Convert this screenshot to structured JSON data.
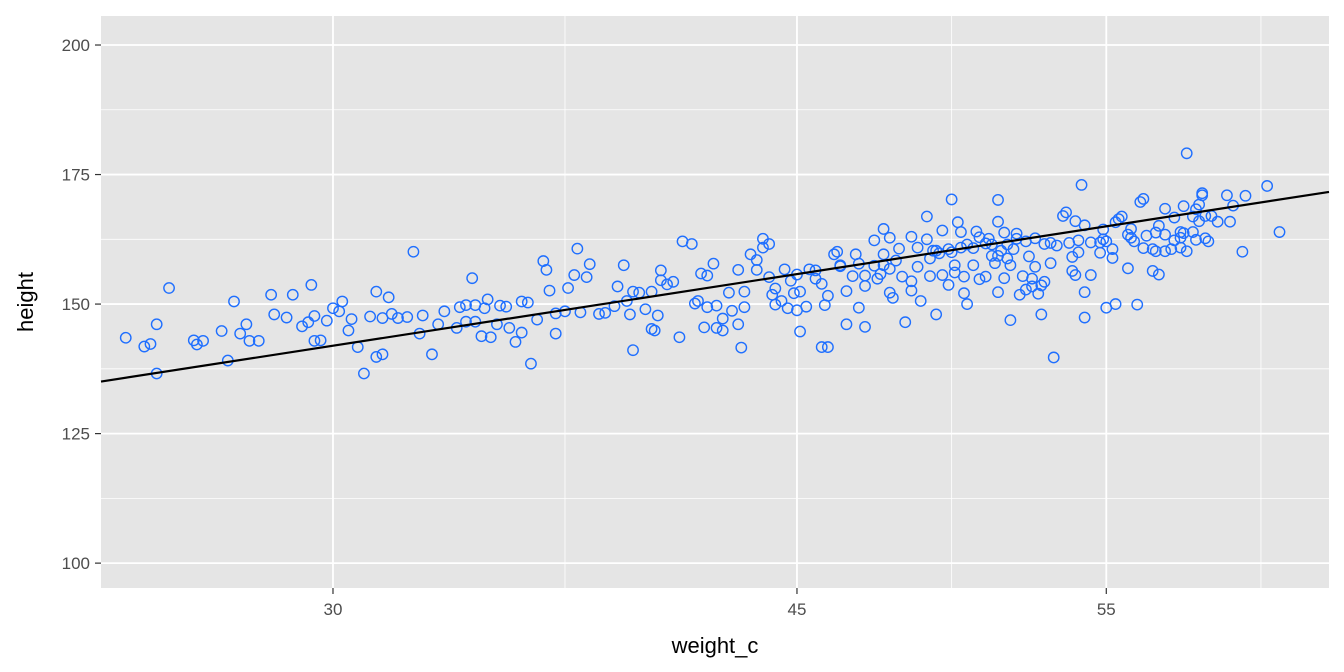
{
  "chart_data": {
    "type": "scatter",
    "title": "",
    "xlabel": "weight_c",
    "ylabel": "height",
    "x_ticks": [
      {
        "value": 30,
        "label": "30"
      },
      {
        "value": 45,
        "label": "45"
      },
      {
        "value": 55,
        "label": "55"
      }
    ],
    "y_ticks": [
      {
        "value": 100,
        "label": "100"
      },
      {
        "value": 125,
        "label": "125"
      },
      {
        "value": 150,
        "label": "150"
      },
      {
        "value": 175,
        "label": "175"
      },
      {
        "value": 200,
        "label": "200"
      }
    ],
    "xlim": [
      22.5,
      62.2
    ],
    "ylim": [
      95.2,
      205.6
    ],
    "grid": true,
    "colors": {
      "panel": "#e5e5e5",
      "grid": "#ffffff",
      "points": "#1f6fff",
      "line": "#000000"
    },
    "fit_line": {
      "intercept": 114.3,
      "slope": 0.922
    },
    "points": [
      [
        23.3,
        143.5
      ],
      [
        23.9,
        141.8
      ],
      [
        24.1,
        142.3
      ],
      [
        24.3,
        136.6
      ],
      [
        24.3,
        146.1
      ],
      [
        24.7,
        153.1
      ],
      [
        25.5,
        143.0
      ],
      [
        25.6,
        142.2
      ],
      [
        25.8,
        142.9
      ],
      [
        26.4,
        144.8
      ],
      [
        26.6,
        139.1
      ],
      [
        26.8,
        150.5
      ],
      [
        27.0,
        144.3
      ],
      [
        27.2,
        146.1
      ],
      [
        27.3,
        142.9
      ],
      [
        27.6,
        142.9
      ],
      [
        28.0,
        151.8
      ],
      [
        28.1,
        148.0
      ],
      [
        28.5,
        147.4
      ],
      [
        28.7,
        151.8
      ],
      [
        29.0,
        145.7
      ],
      [
        29.2,
        146.5
      ],
      [
        29.4,
        147.7
      ],
      [
        29.3,
        153.7
      ],
      [
        29.6,
        143.0
      ],
      [
        29.4,
        142.9
      ],
      [
        29.8,
        146.8
      ],
      [
        30.0,
        149.2
      ],
      [
        30.2,
        148.6
      ],
      [
        30.3,
        150.5
      ],
      [
        30.6,
        147.1
      ],
      [
        30.5,
        144.9
      ],
      [
        30.8,
        141.7
      ],
      [
        31.0,
        136.6
      ],
      [
        31.2,
        147.6
      ],
      [
        31.4,
        152.4
      ],
      [
        31.6,
        147.3
      ],
      [
        31.6,
        140.3
      ],
      [
        31.4,
        139.8
      ],
      [
        31.8,
        151.3
      ],
      [
        31.9,
        148.1
      ],
      [
        32.1,
        147.3
      ],
      [
        32.4,
        147.5
      ],
      [
        32.6,
        160.1
      ],
      [
        32.8,
        144.3
      ],
      [
        32.9,
        147.8
      ],
      [
        33.2,
        140.3
      ],
      [
        33.4,
        146.1
      ],
      [
        33.6,
        148.6
      ],
      [
        34.0,
        145.4
      ],
      [
        34.1,
        149.4
      ],
      [
        34.3,
        149.8
      ],
      [
        34.3,
        146.6
      ],
      [
        34.5,
        155.0
      ],
      [
        34.6,
        149.8
      ],
      [
        34.6,
        146.6
      ],
      [
        34.8,
        143.8
      ],
      [
        34.9,
        149.2
      ],
      [
        35.1,
        143.6
      ],
      [
        35.0,
        150.9
      ],
      [
        35.4,
        149.7
      ],
      [
        35.3,
        146.1
      ],
      [
        35.6,
        149.5
      ],
      [
        35.7,
        145.4
      ],
      [
        35.9,
        142.7
      ],
      [
        36.1,
        144.5
      ],
      [
        36.1,
        150.5
      ],
      [
        36.3,
        150.3
      ],
      [
        36.4,
        138.5
      ],
      [
        36.6,
        147.0
      ],
      [
        36.8,
        158.3
      ],
      [
        36.9,
        156.6
      ],
      [
        37.0,
        152.6
      ],
      [
        37.2,
        144.3
      ],
      [
        37.2,
        148.2
      ],
      [
        37.5,
        148.6
      ],
      [
        37.6,
        153.1
      ],
      [
        37.8,
        155.6
      ],
      [
        37.9,
        160.7
      ],
      [
        38.0,
        148.4
      ],
      [
        38.2,
        155.2
      ],
      [
        38.3,
        157.7
      ],
      [
        38.6,
        148.1
      ],
      [
        38.8,
        148.3
      ],
      [
        39.1,
        149.6
      ],
      [
        39.2,
        153.4
      ],
      [
        39.4,
        157.5
      ],
      [
        39.5,
        150.6
      ],
      [
        39.6,
        148.0
      ],
      [
        39.7,
        152.4
      ],
      [
        39.9,
        152.2
      ],
      [
        39.7,
        141.1
      ],
      [
        40.1,
        149.0
      ],
      [
        40.3,
        152.4
      ],
      [
        40.3,
        145.2
      ],
      [
        40.4,
        144.9
      ],
      [
        40.5,
        147.8
      ],
      [
        40.6,
        154.6
      ],
      [
        40.6,
        156.5
      ],
      [
        40.8,
        153.8
      ],
      [
        41.0,
        154.3
      ],
      [
        41.2,
        143.6
      ],
      [
        41.3,
        162.1
      ],
      [
        41.6,
        161.6
      ],
      [
        41.7,
        150.1
      ],
      [
        41.8,
        150.6
      ],
      [
        41.9,
        155.9
      ],
      [
        42.0,
        145.5
      ],
      [
        42.1,
        149.4
      ],
      [
        42.1,
        155.5
      ],
      [
        42.3,
        157.8
      ],
      [
        42.4,
        149.7
      ],
      [
        42.4,
        145.4
      ],
      [
        42.6,
        147.2
      ],
      [
        42.8,
        152.2
      ],
      [
        42.6,
        144.9
      ],
      [
        42.9,
        148.7
      ],
      [
        43.1,
        156.6
      ],
      [
        43.2,
        141.6
      ],
      [
        43.1,
        146.1
      ],
      [
        43.3,
        149.4
      ],
      [
        43.3,
        152.4
      ],
      [
        43.5,
        159.6
      ],
      [
        43.7,
        158.5
      ],
      [
        43.7,
        156.6
      ],
      [
        43.9,
        160.9
      ],
      [
        43.9,
        162.6
      ],
      [
        44.1,
        155.2
      ],
      [
        44.1,
        161.6
      ],
      [
        44.2,
        151.8
      ],
      [
        44.3,
        153.0
      ],
      [
        44.3,
        149.9
      ],
      [
        44.5,
        150.6
      ],
      [
        44.7,
        149.2
      ],
      [
        44.6,
        156.7
      ],
      [
        44.8,
        154.5
      ],
      [
        44.9,
        152.1
      ],
      [
        45.0,
        155.7
      ],
      [
        45.0,
        148.8
      ],
      [
        45.1,
        152.4
      ],
      [
        45.1,
        144.7
      ],
      [
        45.3,
        149.5
      ],
      [
        45.4,
        156.7
      ],
      [
        45.6,
        154.9
      ],
      [
        45.6,
        156.5
      ],
      [
        45.8,
        153.9
      ],
      [
        45.9,
        149.8
      ],
      [
        45.8,
        141.7
      ],
      [
        46.0,
        141.7
      ],
      [
        46.0,
        151.6
      ],
      [
        46.2,
        159.6
      ],
      [
        46.4,
        157.3
      ],
      [
        46.4,
        157.5
      ],
      [
        46.3,
        160.1
      ],
      [
        46.6,
        152.5
      ],
      [
        46.6,
        146.1
      ],
      [
        46.8,
        155.4
      ],
      [
        46.9,
        159.6
      ],
      [
        47.0,
        149.3
      ],
      [
        47.0,
        157.8
      ],
      [
        47.2,
        155.5
      ],
      [
        47.2,
        153.5
      ],
      [
        47.2,
        145.6
      ],
      [
        47.5,
        162.3
      ],
      [
        47.5,
        157.4
      ],
      [
        47.6,
        154.9
      ],
      [
        47.7,
        155.8
      ],
      [
        47.8,
        157.5
      ],
      [
        47.8,
        164.5
      ],
      [
        47.8,
        159.6
      ],
      [
        48.0,
        162.8
      ],
      [
        48.0,
        156.8
      ],
      [
        48.0,
        152.2
      ],
      [
        48.1,
        151.2
      ],
      [
        48.2,
        158.4
      ],
      [
        48.3,
        160.7
      ],
      [
        48.4,
        155.3
      ],
      [
        48.5,
        146.5
      ],
      [
        48.7,
        163.0
      ],
      [
        48.7,
        154.4
      ],
      [
        48.7,
        152.6
      ],
      [
        48.9,
        160.9
      ],
      [
        48.9,
        157.2
      ],
      [
        49.0,
        150.6
      ],
      [
        49.2,
        162.5
      ],
      [
        49.2,
        166.9
      ],
      [
        49.3,
        155.4
      ],
      [
        49.3,
        158.8
      ],
      [
        49.4,
        160.3
      ],
      [
        49.5,
        160.3
      ],
      [
        49.5,
        148.0
      ],
      [
        49.6,
        159.8
      ],
      [
        49.7,
        164.2
      ],
      [
        49.7,
        155.6
      ],
      [
        49.9,
        153.7
      ],
      [
        49.9,
        160.6
      ],
      [
        50.0,
        170.2
      ],
      [
        50.0,
        160.0
      ],
      [
        50.1,
        157.5
      ],
      [
        50.2,
        165.8
      ],
      [
        50.1,
        156.1
      ],
      [
        50.3,
        163.9
      ],
      [
        50.3,
        160.9
      ],
      [
        50.4,
        155.3
      ],
      [
        50.4,
        152.1
      ],
      [
        50.5,
        150.0
      ],
      [
        50.5,
        161.5
      ],
      [
        50.7,
        160.8
      ],
      [
        50.7,
        157.5
      ],
      [
        50.8,
        164.0
      ],
      [
        50.9,
        154.8
      ],
      [
        50.9,
        162.9
      ],
      [
        51.1,
        161.7
      ],
      [
        51.1,
        155.3
      ],
      [
        51.2,
        162.6
      ],
      [
        51.3,
        159.3
      ],
      [
        51.3,
        161.5
      ],
      [
        51.4,
        157.9
      ],
      [
        51.5,
        165.9
      ],
      [
        51.5,
        170.1
      ],
      [
        51.5,
        159.3
      ],
      [
        51.5,
        152.3
      ],
      [
        51.6,
        160.3
      ],
      [
        51.7,
        163.8
      ],
      [
        51.7,
        155.0
      ],
      [
        51.8,
        158.8
      ],
      [
        51.8,
        161.5
      ],
      [
        51.9,
        157.5
      ],
      [
        51.9,
        146.9
      ],
      [
        52.0,
        160.6
      ],
      [
        52.1,
        162.6
      ],
      [
        52.1,
        163.6
      ],
      [
        52.2,
        151.8
      ],
      [
        52.3,
        155.4
      ],
      [
        52.4,
        152.8
      ],
      [
        52.4,
        162.1
      ],
      [
        52.5,
        159.2
      ],
      [
        52.6,
        153.4
      ],
      [
        52.6,
        154.9
      ],
      [
        52.7,
        162.7
      ],
      [
        52.7,
        157.2
      ],
      [
        52.8,
        152.0
      ],
      [
        52.9,
        153.6
      ],
      [
        52.9,
        148.0
      ],
      [
        53.0,
        161.6
      ],
      [
        53.0,
        154.3
      ],
      [
        53.2,
        161.8
      ],
      [
        53.2,
        157.9
      ],
      [
        53.3,
        139.7
      ],
      [
        53.4,
        161.3
      ],
      [
        53.6,
        167.0
      ],
      [
        53.7,
        167.7
      ],
      [
        53.8,
        161.8
      ],
      [
        53.9,
        159.1
      ],
      [
        53.9,
        156.4
      ],
      [
        54.0,
        155.6
      ],
      [
        54.0,
        166.0
      ],
      [
        54.1,
        162.3
      ],
      [
        54.1,
        160.0
      ],
      [
        54.2,
        173.0
      ],
      [
        54.3,
        165.2
      ],
      [
        54.3,
        152.3
      ],
      [
        54.3,
        147.4
      ],
      [
        54.5,
        161.9
      ],
      [
        54.5,
        155.6
      ],
      [
        54.8,
        161.9
      ],
      [
        54.8,
        159.9
      ],
      [
        54.9,
        164.4
      ],
      [
        54.9,
        162.5
      ],
      [
        55.0,
        162.1
      ],
      [
        55.0,
        149.3
      ],
      [
        55.2,
        158.9
      ],
      [
        55.2,
        160.6
      ],
      [
        55.3,
        165.8
      ],
      [
        55.3,
        150.0
      ],
      [
        55.4,
        166.4
      ],
      [
        55.5,
        166.9
      ],
      [
        55.7,
        156.9
      ],
      [
        55.7,
        163.4
      ],
      [
        55.8,
        162.8
      ],
      [
        55.8,
        164.5
      ],
      [
        55.9,
        162.1
      ],
      [
        56.0,
        149.9
      ],
      [
        56.1,
        169.7
      ],
      [
        56.2,
        170.3
      ],
      [
        56.2,
        160.8
      ],
      [
        56.3,
        163.2
      ],
      [
        56.5,
        156.4
      ],
      [
        56.5,
        160.6
      ],
      [
        56.6,
        160.2
      ],
      [
        56.6,
        163.8
      ],
      [
        56.7,
        155.7
      ],
      [
        56.7,
        165.1
      ],
      [
        56.9,
        168.4
      ],
      [
        56.9,
        163.4
      ],
      [
        56.9,
        160.2
      ],
      [
        57.1,
        160.6
      ],
      [
        57.2,
        162.3
      ],
      [
        57.2,
        166.7
      ],
      [
        57.4,
        163.9
      ],
      [
        57.4,
        162.8
      ],
      [
        57.4,
        160.9
      ],
      [
        57.5,
        168.9
      ],
      [
        57.5,
        163.7
      ],
      [
        57.6,
        179.1
      ],
      [
        57.6,
        160.2
      ],
      [
        57.8,
        166.9
      ],
      [
        57.8,
        163.9
      ],
      [
        57.9,
        168.3
      ],
      [
        57.9,
        162.4
      ],
      [
        58.0,
        169.2
      ],
      [
        58.0,
        166.0
      ],
      [
        58.1,
        171.4
      ],
      [
        58.1,
        171.0
      ],
      [
        58.2,
        167.0
      ],
      [
        58.2,
        162.7
      ],
      [
        58.3,
        162.1
      ],
      [
        58.4,
        167.0
      ],
      [
        58.6,
        165.9
      ],
      [
        58.9,
        171.0
      ],
      [
        59.0,
        165.9
      ],
      [
        59.1,
        169.0
      ],
      [
        59.4,
        160.1
      ],
      [
        59.5,
        170.9
      ],
      [
        60.2,
        172.8
      ],
      [
        60.6,
        163.9
      ]
    ]
  }
}
